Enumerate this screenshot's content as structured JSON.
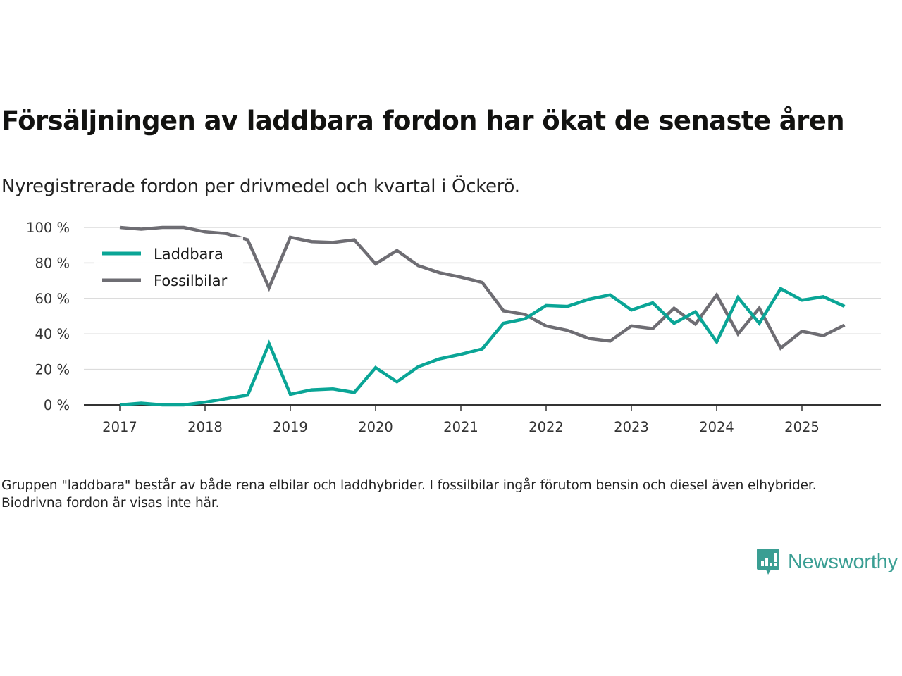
{
  "header": {
    "title": "Försäljningen av laddbara fordon har ökat de senaste åren",
    "subtitle": "Nyregistrerade fordon per drivmedel och kvartal i Öckerö."
  },
  "footnote": "Gruppen \"laddbara\" består av både rena elbilar och laddhybrider. I fossilbilar ingår förutom bensin och diesel även elhybrider. Biodrivna fordon är visas inte här.",
  "logo": {
    "text": "Newsworthy",
    "icon": "newsworthy-chart-bubble-icon",
    "color": "#3a9e93"
  },
  "chart_data": {
    "type": "line",
    "title": "Försäljningen av laddbara fordon har ökat de senaste åren",
    "subtitle": "Nyregistrerade fordon per drivmedel och kvartal i Öckerö.",
    "xlabel": "",
    "ylabel": "",
    "x": [
      2017.0,
      2017.25,
      2017.5,
      2017.75,
      2018.0,
      2018.25,
      2018.5,
      2018.75,
      2019.0,
      2019.25,
      2019.5,
      2019.75,
      2020.0,
      2020.25,
      2020.5,
      2020.75,
      2021.0,
      2021.25,
      2021.5,
      2021.75,
      2022.0,
      2022.25,
      2022.5,
      2022.75,
      2023.0,
      2023.25,
      2023.5,
      2023.75,
      2024.0,
      2024.25,
      2024.5,
      2024.75,
      2025.0,
      2025.25,
      2025.5
    ],
    "xlim": [
      2016.6,
      2026.0
    ],
    "ylim": [
      0,
      100
    ],
    "xticks": [
      2017,
      2018,
      2019,
      2020,
      2021,
      2022,
      2023,
      2024,
      2025
    ],
    "xtick_labels": [
      "2017",
      "2018",
      "2019",
      "2020",
      "2021",
      "2022",
      "2023",
      "2024",
      "2025"
    ],
    "yticks": [
      0,
      20,
      40,
      60,
      80,
      100
    ],
    "ytick_labels": [
      "0 %",
      "20 %",
      "40 %",
      "60 %",
      "80 %",
      "100 %"
    ],
    "grid": true,
    "legend_position": "top-left",
    "series": [
      {
        "name": "Laddbara",
        "color": "#0aa596",
        "values": [
          0,
          1,
          0,
          0,
          1.5,
          3.5,
          5.5,
          34.5,
          6,
          8.5,
          9,
          7,
          21,
          13,
          21.5,
          26,
          28.5,
          31.5,
          46,
          48.5,
          56,
          55.5,
          59.5,
          62,
          53.5,
          57.5,
          46,
          52.5,
          35.5,
          60.5,
          46,
          65.5,
          59,
          61,
          55.5
        ]
      },
      {
        "name": "Fossilbilar",
        "color": "#6e6d73",
        "values": [
          100,
          99,
          100,
          100,
          97.5,
          96.5,
          93,
          66,
          94.5,
          92,
          91.5,
          93,
          79.5,
          87,
          78.5,
          74.5,
          72,
          69,
          53,
          51,
          44.5,
          42,
          37.5,
          36,
          44.5,
          43,
          54.5,
          45.5,
          62,
          40,
          54.5,
          32,
          41.5,
          39,
          45
        ]
      }
    ]
  }
}
